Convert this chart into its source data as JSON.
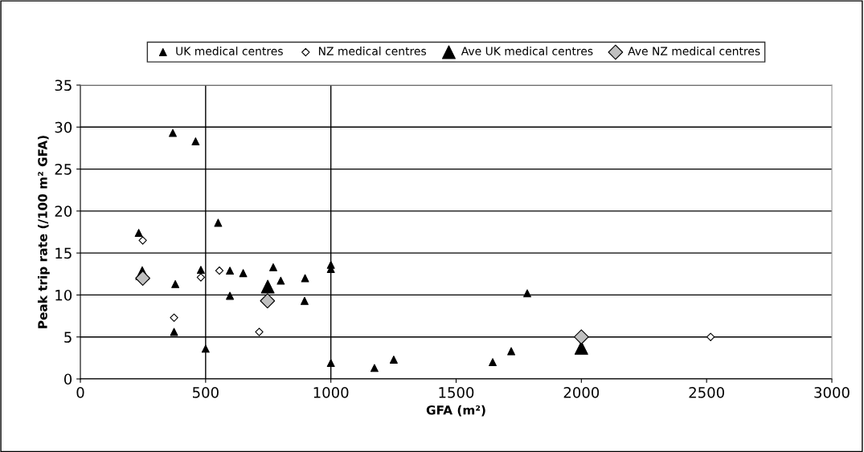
{
  "chart_data": {
    "type": "scatter",
    "xlabel": "GFA (m²)",
    "ylabel": "Peak trip rate (/100 m² GFA)",
    "xlim": [
      0,
      3000
    ],
    "xticks": [
      0,
      500,
      1000,
      1500,
      2000,
      2500,
      3000
    ],
    "ylim": [
      0,
      35
    ],
    "yticks": [
      0,
      5,
      10,
      15,
      20,
      25,
      30,
      35
    ],
    "grid": "y",
    "legend": "top",
    "ref_lines": [
      {
        "axis": "x",
        "value": 500,
        "color": "#000000"
      },
      {
        "axis": "x",
        "value": 1000,
        "color": "#000000"
      }
    ],
    "series": [
      {
        "name": "UK medical centres",
        "color": "#000000",
        "marker": "triangle",
        "x": [
          369,
          460,
          233,
          550,
          481,
          597,
          650,
          770,
          379,
          800,
          897,
          1000,
          1000,
          597,
          895,
          374,
          500,
          1000,
          1174,
          1251,
          1646,
          1720,
          1784
        ],
        "values": [
          29.3,
          28.3,
          17.4,
          18.6,
          13.0,
          12.9,
          12.6,
          13.3,
          11.3,
          11.7,
          12.0,
          13.6,
          13.1,
          9.9,
          9.3,
          5.6,
          3.6,
          1.9,
          1.3,
          2.3,
          2.0,
          3.3,
          10.2
        ]
      },
      {
        "name": "NZ medical centres",
        "color": "#ffffff",
        "marker": "diamond",
        "x": [
          249,
          555,
          481,
          374,
          714,
          2516
        ],
        "values": [
          16.5,
          12.9,
          12.1,
          7.3,
          5.6,
          5.0
        ]
      },
      {
        "name": "Ave UK medical centres",
        "color": "#000000",
        "marker": "triangle",
        "x": [
          247,
          748,
          2000
        ],
        "values": [
          12.6,
          11.0,
          3.7
        ]
      },
      {
        "name": "Ave NZ medical centres",
        "color": "#c0c0c0",
        "marker": "diamond",
        "x": [
          249,
          747,
          2000
        ],
        "values": [
          12.0,
          9.3,
          5.0
        ]
      }
    ]
  }
}
